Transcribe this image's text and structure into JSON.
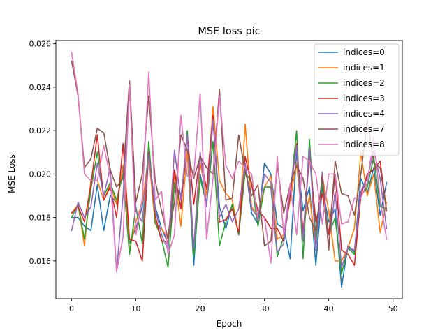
{
  "chart_data": {
    "type": "line",
    "title": "MSE loss pic",
    "xlabel": "Epoch",
    "ylabel": "MSE Loss",
    "xlim": [
      -2.45,
      51.45
    ],
    "ylim": [
      0.01426,
      0.02615
    ],
    "xticks": [
      0,
      10,
      20,
      30,
      40,
      50
    ],
    "yticks": [
      0.016,
      0.018,
      0.02,
      0.022,
      0.024,
      0.026
    ],
    "ytick_labels": [
      "0.016",
      "0.018",
      "0.020",
      "0.022",
      "0.024",
      "0.026"
    ],
    "grid": false,
    "legend_position": "top-right",
    "x": [
      0,
      1,
      2,
      3,
      4,
      5,
      6,
      7,
      8,
      9,
      10,
      11,
      12,
      13,
      14,
      15,
      16,
      17,
      18,
      19,
      20,
      21,
      22,
      23,
      24,
      25,
      26,
      27,
      28,
      29,
      30,
      31,
      32,
      33,
      34,
      35,
      36,
      37,
      38,
      39,
      40,
      41,
      42,
      43,
      44,
      45,
      46,
      47,
      48,
      49
    ],
    "series": [
      {
        "name": "indices=0",
        "color": "#1f77b4",
        "values": [
          0.018,
          0.018,
          0.0176,
          0.0174,
          0.0195,
          0.0174,
          0.019,
          0.0187,
          0.0203,
          0.0168,
          0.0175,
          0.0185,
          0.021,
          0.0185,
          0.0175,
          0.0168,
          0.0196,
          0.019,
          0.021,
          0.0158,
          0.02,
          0.0186,
          0.0225,
          0.0185,
          0.0175,
          0.0186,
          0.0172,
          0.0205,
          0.0182,
          0.0177,
          0.0205,
          0.02,
          0.0177,
          0.0175,
          0.0161,
          0.021,
          0.0183,
          0.0194,
          0.0158,
          0.0194,
          0.0178,
          0.0184,
          0.0148,
          0.0167,
          0.0164,
          0.0198,
          0.0191,
          0.0203,
          0.0181,
          0.0196
        ]
      },
      {
        "name": "indices=1",
        "color": "#ff7f0e",
        "values": [
          0.0182,
          0.0186,
          0.0167,
          0.0197,
          0.0197,
          0.0188,
          0.0195,
          0.0186,
          0.0204,
          0.0165,
          0.0178,
          0.0187,
          0.0208,
          0.0177,
          0.0175,
          0.017,
          0.02,
          0.0176,
          0.0211,
          0.0163,
          0.0205,
          0.019,
          0.0231,
          0.0197,
          0.0191,
          0.0188,
          0.0172,
          0.0223,
          0.0185,
          0.0181,
          0.0194,
          0.0199,
          0.017,
          0.0172,
          0.0188,
          0.0205,
          0.0175,
          0.019,
          0.0166,
          0.0199,
          0.0183,
          0.016,
          0.016,
          0.0166,
          0.0175,
          0.021,
          0.019,
          0.02,
          0.0173,
          0.0187
        ]
      },
      {
        "name": "indices=2",
        "color": "#2ca02c",
        "values": [
          0.018,
          0.0186,
          0.017,
          0.0193,
          0.021,
          0.019,
          0.0196,
          0.0188,
          0.02,
          0.0163,
          0.0185,
          0.0168,
          0.0215,
          0.0178,
          0.017,
          0.0157,
          0.0195,
          0.0185,
          0.022,
          0.0162,
          0.0198,
          0.0186,
          0.0215,
          0.0167,
          0.0178,
          0.0186,
          0.0172,
          0.0201,
          0.0196,
          0.0176,
          0.0194,
          0.0194,
          0.0162,
          0.0171,
          0.019,
          0.022,
          0.0161,
          0.0216,
          0.017,
          0.0196,
          0.0172,
          0.018,
          0.0154,
          0.0166,
          0.0163,
          0.019,
          0.0194,
          0.0208,
          0.0185,
          0.0184
        ]
      },
      {
        "name": "indices=3",
        "color": "#d62728",
        "values": [
          0.0182,
          0.0185,
          0.0178,
          0.0195,
          0.0218,
          0.0188,
          0.0194,
          0.018,
          0.0214,
          0.017,
          0.0169,
          0.016,
          0.021,
          0.0181,
          0.0169,
          0.0169,
          0.0202,
          0.0184,
          0.0218,
          0.0186,
          0.0209,
          0.0193,
          0.0227,
          0.0178,
          0.0179,
          0.0184,
          0.0173,
          0.0208,
          0.0195,
          0.0183,
          0.018,
          0.0175,
          0.0175,
          0.0169,
          0.019,
          0.0214,
          0.0172,
          0.0208,
          0.0178,
          0.0191,
          0.0172,
          0.02,
          0.0165,
          0.0163,
          0.0158,
          0.019,
          0.02,
          0.0202,
          0.0206,
          0.0183
        ]
      },
      {
        "name": "indices=4",
        "color": "#9467bd",
        "values": [
          0.0174,
          0.0187,
          0.018,
          0.0185,
          0.0205,
          0.019,
          0.0203,
          0.0155,
          0.019,
          0.0242,
          0.0183,
          0.0178,
          0.0209,
          0.0184,
          0.0172,
          0.0165,
          0.0211,
          0.0188,
          0.0218,
          0.0166,
          0.021,
          0.0185,
          0.0225,
          0.018,
          0.0186,
          0.0178,
          0.0184,
          0.0205,
          0.0184,
          0.018,
          0.02,
          0.0196,
          0.0164,
          0.0168,
          0.0193,
          0.0213,
          0.0169,
          0.0212,
          0.0165,
          0.0201,
          0.0167,
          0.0192,
          0.0157,
          0.0166,
          0.0165,
          0.0192,
          0.0198,
          0.0211,
          0.0198,
          0.0175
        ]
      },
      {
        "name": "indices=7",
        "color": "#8c564b",
        "values": [
          0.0252,
          0.0236,
          0.0203,
          0.0207,
          0.0221,
          0.0219,
          0.0202,
          0.0194,
          0.0198,
          0.0243,
          0.0187,
          0.02,
          0.0236,
          0.0197,
          0.0183,
          0.017,
          0.0187,
          0.0218,
          0.0211,
          0.0198,
          0.0208,
          0.0203,
          0.02,
          0.0239,
          0.0188,
          0.0189,
          0.0218,
          0.0201,
          0.019,
          0.0195,
          0.0167,
          0.0169,
          0.0204,
          0.0182,
          0.0195,
          0.0204,
          0.0198,
          0.018,
          0.0174,
          0.0199,
          0.0165,
          0.0206,
          0.0191,
          0.019,
          0.0181,
          0.02,
          0.0225,
          0.0205,
          0.0203,
          0.0183
        ]
      },
      {
        "name": "indices=8",
        "color": "#e377c2",
        "values": [
          0.0256,
          0.0237,
          0.02,
          0.0197,
          0.0197,
          0.0213,
          0.0199,
          0.0155,
          0.0171,
          0.0241,
          0.0172,
          0.0189,
          0.0247,
          0.0188,
          0.0192,
          0.0163,
          0.0172,
          0.0227,
          0.0199,
          0.0199,
          0.0237,
          0.017,
          0.0198,
          0.0236,
          0.0204,
          0.0198,
          0.0206,
          0.0203,
          0.02,
          0.0179,
          0.018,
          0.0159,
          0.0208,
          0.0172,
          0.0195,
          0.0172,
          0.0208,
          0.0206,
          0.02,
          0.0177,
          0.02,
          0.02,
          0.0177,
          0.0178,
          0.0189,
          0.0189,
          0.0196,
          0.0217,
          0.0188,
          0.017
        ]
      }
    ]
  }
}
